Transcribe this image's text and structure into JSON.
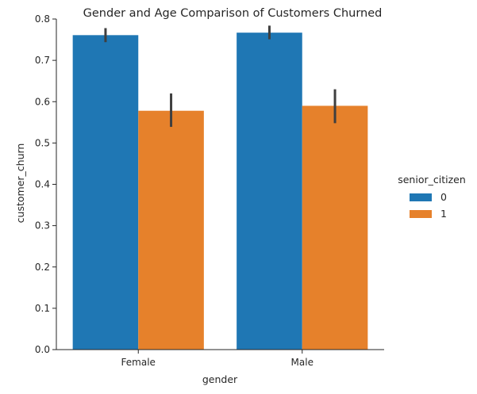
{
  "chart_data": {
    "type": "bar",
    "title": "Gender and Age Comparison of Customers Churned",
    "xlabel": "gender",
    "ylabel": "customer_churn",
    "categories": [
      "Female",
      "Male"
    ],
    "ylim": [
      0,
      0.8
    ],
    "yticks": [
      "0.0",
      "0.1",
      "0.2",
      "0.3",
      "0.4",
      "0.5",
      "0.6",
      "0.7",
      "0.8"
    ],
    "grid": false,
    "legend": {
      "title": "senior_citizen",
      "position": "right"
    },
    "series": [
      {
        "name": "0",
        "color": "#1f77b4",
        "values": [
          0.761,
          0.767
        ],
        "ci_low": [
          0.744,
          0.751
        ],
        "ci_high": [
          0.778,
          0.784
        ]
      },
      {
        "name": "1",
        "color": "#e6812b",
        "values": [
          0.578,
          0.59
        ],
        "ci_low": [
          0.539,
          0.548
        ],
        "ci_high": [
          0.62,
          0.63
        ]
      }
    ],
    "errorbar_color": "#3f3f3f"
  }
}
